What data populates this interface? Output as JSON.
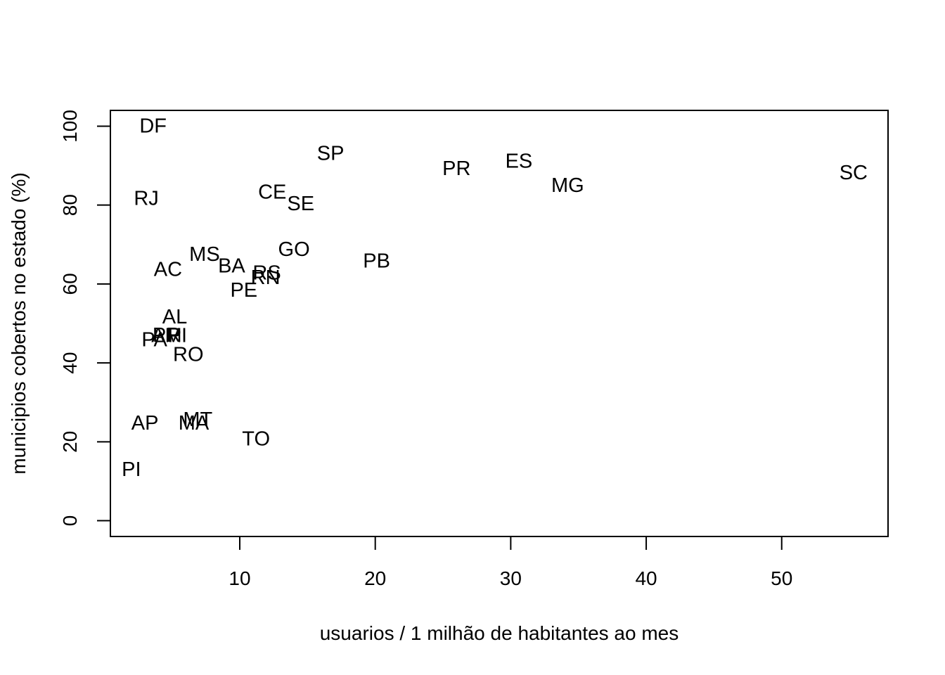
{
  "chart_data": {
    "type": "scatter",
    "title": "",
    "xlabel": "usuarios / 1 milhão de habitantes ao mes",
    "ylabel": "municipios cobertos no estado (%)",
    "xlim": [
      0.45,
      57.85
    ],
    "ylim": [
      -4,
      104
    ],
    "x_ticks": [
      10,
      20,
      30,
      40,
      50
    ],
    "y_ticks": [
      0,
      20,
      40,
      60,
      80,
      100
    ],
    "x_tick_labels": [
      "10",
      "20",
      "30",
      "40",
      "50"
    ],
    "y_tick_labels": [
      "0",
      "20",
      "40",
      "60",
      "80",
      "100"
    ],
    "grid": false,
    "legend": "none",
    "point_label_mode": "text-at-point",
    "points": [
      {
        "label": "DF",
        "x": 3.6,
        "y": 100
      },
      {
        "label": "SP",
        "x": 16.7,
        "y": 93
      },
      {
        "label": "ES",
        "x": 30.6,
        "y": 91.1
      },
      {
        "label": "PR",
        "x": 26.0,
        "y": 89.2
      },
      {
        "label": "SC",
        "x": 55.3,
        "y": 88.1
      },
      {
        "label": "MG",
        "x": 34.2,
        "y": 84.9
      },
      {
        "label": "CE",
        "x": 12.4,
        "y": 83.2
      },
      {
        "label": "RJ",
        "x": 3.1,
        "y": 81.6
      },
      {
        "label": "SE",
        "x": 14.5,
        "y": 80.3
      },
      {
        "label": "GO",
        "x": 14.0,
        "y": 68.7
      },
      {
        "label": "MS",
        "x": 7.4,
        "y": 67.5
      },
      {
        "label": "PB",
        "x": 20.1,
        "y": 65.8
      },
      {
        "label": "BA",
        "x": 9.4,
        "y": 64.5
      },
      {
        "label": "AC",
        "x": 4.7,
        "y": 63.6
      },
      {
        "label": "RS",
        "x": 12.0,
        "y": 62.7
      },
      {
        "label": "RN",
        "x": 11.9,
        "y": 61.6
      },
      {
        "label": "PE",
        "x": 10.3,
        "y": 58.4
      },
      {
        "label": "AL",
        "x": 5.2,
        "y": 51.6
      },
      {
        "label": "PR",
        "x": 4.6,
        "y": 47.0
      },
      {
        "label": "AM",
        "x": 4.6,
        "y": 46.9
      },
      {
        "label": "PI",
        "x": 5.4,
        "y": 46.9
      },
      {
        "label": "PA",
        "x": 3.7,
        "y": 45.8
      },
      {
        "label": "RO",
        "x": 6.2,
        "y": 42.1
      },
      {
        "label": "MT",
        "x": 6.9,
        "y": 25.6
      },
      {
        "label": "AP",
        "x": 3.0,
        "y": 24.7
      },
      {
        "label": "MA",
        "x": 6.6,
        "y": 24.7
      },
      {
        "label": "TO",
        "x": 11.2,
        "y": 20.7
      },
      {
        "label": "PI",
        "x": 2.0,
        "y": 12.9
      }
    ]
  }
}
